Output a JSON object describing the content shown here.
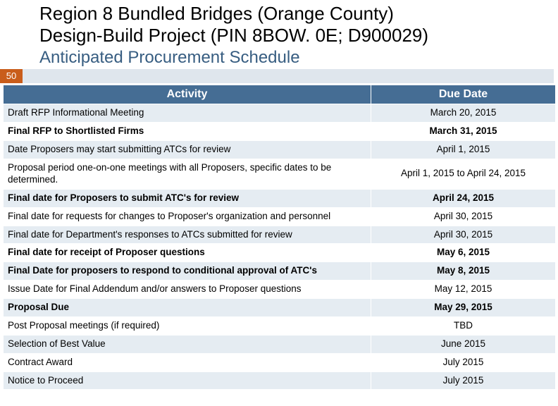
{
  "title_line1": "Region 8 Bundled Bridges (Orange County)",
  "title_line2": "Design-Build Project (PIN 8BOW. 0E; D900029)",
  "subtitle": "Anticipated Procurement Schedule",
  "slide_number": "50",
  "table": {
    "header_activity": "Activity",
    "header_date": "Due Date",
    "header_bg": "#456d94",
    "row_odd_bg": "#e5ecf2",
    "row_even_bg": "#ffffff",
    "badge_bg": "#c95d1b",
    "rows": [
      {
        "activity": "Draft RFP Informational Meeting",
        "date": "March 20, 2015",
        "bold": false
      },
      {
        "activity": "Final RFP to Shortlisted Firms",
        "date": "March 31,  2015",
        "bold": true
      },
      {
        "activity": "Date Proposers may start submitting ATCs for review",
        "date": "April 1, 2015",
        "bold": false
      },
      {
        "activity": "Proposal period one-on-one meetings with all Proposers, specific dates to be determined.",
        "date": "April 1, 2015 to April 24, 2015",
        "bold": false
      },
      {
        "activity": "Final date for Proposers to submit ATC's for review",
        "date": "April 24, 2015",
        "bold": true
      },
      {
        "activity": "Final date for requests for changes to Proposer's organization and personnel",
        "date": "April 30, 2015",
        "bold": false
      },
      {
        "activity": "Final date for Department's responses to ATCs submitted for review",
        "date": "April 30, 2015",
        "bold": false
      },
      {
        "activity": "Final date for receipt of Proposer questions",
        "date": "May 6, 2015",
        "bold": true
      },
      {
        "activity": "Final Date for proposers to respond to conditional approval of ATC's",
        "date": "May 8, 2015",
        "bold": true
      },
      {
        "activity": "Issue Date for Final Addendum and/or answers to Proposer questions",
        "date": "May 12, 2015",
        "bold": false
      },
      {
        "activity": "Proposal Due",
        "date": "May 29, 2015",
        "bold": true
      },
      {
        "activity": "Post Proposal meetings (if required)",
        "date": "TBD",
        "bold": false
      },
      {
        "activity": "Selection of Best Value",
        "date": "June 2015",
        "bold": false
      },
      {
        "activity": "Contract Award",
        "date": "July 2015",
        "bold": false
      },
      {
        "activity": "Notice to Proceed",
        "date": "July 2015",
        "bold": false
      }
    ]
  }
}
